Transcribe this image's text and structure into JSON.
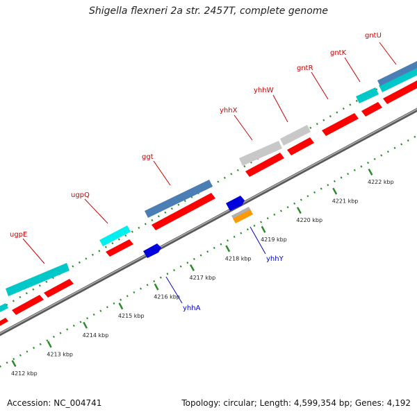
{
  "title": "Shigella flexneri 2a str. 2457T, complete genome",
  "footer": {
    "accession": "Accession: NC_004741",
    "summary": "Topology: circular; Length: 4,599,354 bp; Genes: 4,192"
  },
  "ticks": [
    {
      "label": "4212 kbp"
    },
    {
      "label": "4213 kbp"
    },
    {
      "label": "4214 kbp"
    },
    {
      "label": "4215 kbp"
    },
    {
      "label": "4216 kbp"
    },
    {
      "label": "4217 kbp"
    },
    {
      "label": "4218 kbp"
    },
    {
      "label": "4219 kbp"
    },
    {
      "label": "4220 kbp"
    },
    {
      "label": "4221 kbp"
    },
    {
      "label": "4222 kbp"
    }
  ],
  "gene_labels_forward": [
    "ugpE",
    "ugpQ",
    "ggt",
    "yhhX",
    "yhhW",
    "gntR",
    "gntK",
    "gntU"
  ],
  "gene_labels_reverse": [
    "yhhA",
    "yhhY"
  ],
  "colors": {
    "gene": "#ff0000",
    "cds_cyan": "#00c8c8",
    "cds_bright_cyan": "#00f0f0",
    "cds_steelblue": "#4a7fb5",
    "cds_gray": "#c8c8c8",
    "reverse_blue": "#0000dd",
    "reverse_orange": "#ff9900",
    "backbone": "#888888",
    "tick_green": "#228b22",
    "forward_label": "#cc0000",
    "reverse_label": "#0000cc"
  }
}
